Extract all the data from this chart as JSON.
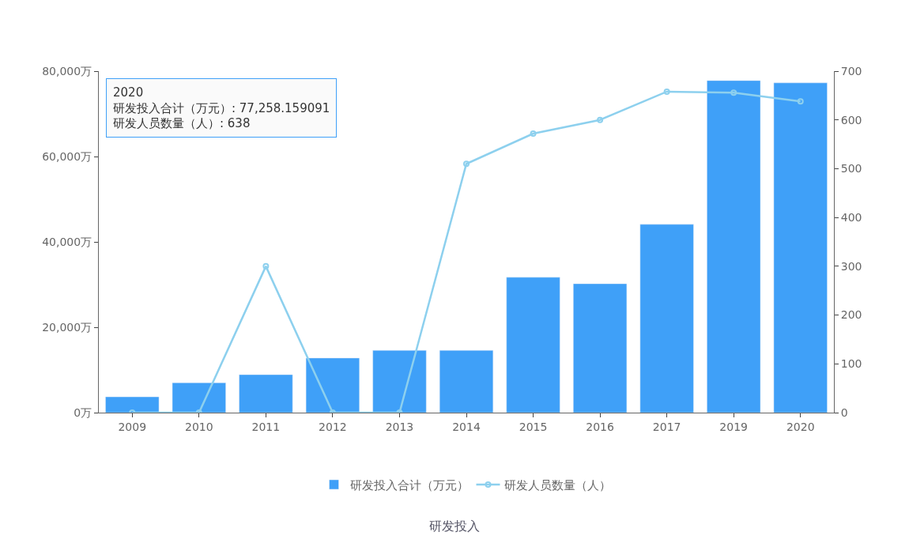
{
  "chart_data": {
    "type": "bar",
    "title": "研发投入",
    "categories": [
      "2009",
      "2010",
      "2011",
      "2012",
      "2013",
      "2014",
      "2015",
      "2016",
      "2017",
      "2019",
      "2020"
    ],
    "series": [
      {
        "name": "研发投入合计（万元）",
        "color": "#3fa0f8",
        "values": [
          3700,
          7000,
          8900,
          12800,
          14600,
          14600,
          31700,
          30200,
          44100,
          77800,
          77258.159091
        ]
      },
      {
        "name": "研发人员数量（人）",
        "type": "line",
        "axis": "y2",
        "color": "#8dd0ee",
        "marker": "circle",
        "line_style": "solid",
        "values": [
          0,
          0,
          300,
          0,
          0,
          510,
          572,
          600,
          658,
          656,
          638
        ]
      }
    ],
    "ylim": [
      0,
      80000
    ],
    "yticks": [
      {
        "value": 0,
        "label": "0万"
      },
      {
        "value": 20000,
        "label": "20,000万"
      },
      {
        "value": 40000,
        "label": "40,000万"
      },
      {
        "value": 60000,
        "label": "60,000万"
      },
      {
        "value": 80000,
        "label": "80,000万"
      }
    ],
    "y2lim": [
      0,
      700
    ],
    "y2ticks": [
      0,
      100,
      200,
      300,
      400,
      500,
      600,
      700
    ],
    "annotations": [
      "2020",
      "研发投入合计（万元）: 77,258.159091",
      "研发人员数量（人）: 638"
    ],
    "legend": "bottom"
  }
}
